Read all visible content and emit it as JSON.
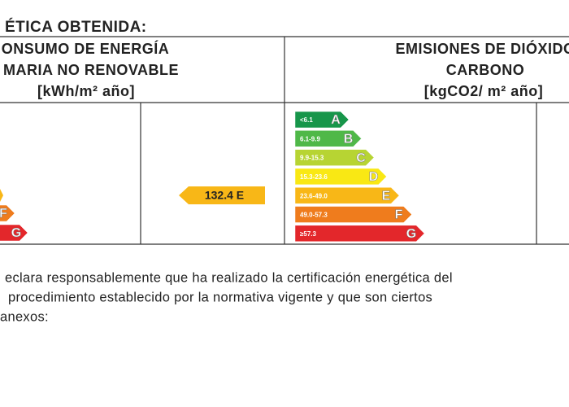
{
  "title": "ÉTICA OBTENIDA:",
  "headers": {
    "energy": [
      "ONSUMO DE ENERGÍA",
      "MARIA NO RENOVABLE",
      "[kWh/m² año]"
    ],
    "emissions": [
      "EMISIONES DE DIÓXIDO",
      "CARBONO",
      "[kgCO2/ m² año]"
    ]
  },
  "energy_scale": [
    {
      "letter": "F"
    },
    {
      "letter": "G"
    }
  ],
  "rating": "132.4 E",
  "emissions_scale": [
    {
      "range": "<6.1",
      "letter": "A"
    },
    {
      "range": "6.1-9.9",
      "letter": "B"
    },
    {
      "range": "9.9-15.3",
      "letter": "C"
    },
    {
      "range": "15.3-23.6",
      "letter": "D"
    },
    {
      "range": "23.6-49.0",
      "letter": "E"
    },
    {
      "range": "49.0-57.3",
      "letter": "F"
    },
    {
      "range": "≥57.3",
      "letter": "G"
    }
  ],
  "declaration": [
    "eclara responsablemente que ha realizado la certificación energética del",
    "procedimiento establecido por la normativa vigente y que son ciertos",
    "anexos:"
  ]
}
